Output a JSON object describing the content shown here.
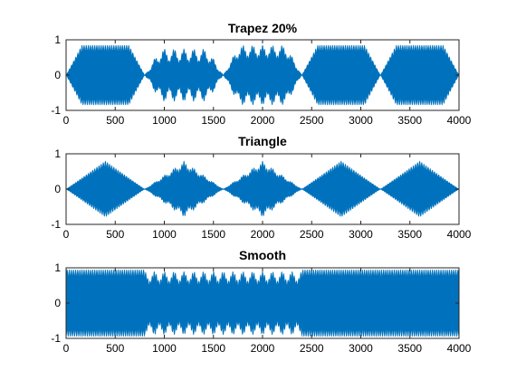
{
  "figure": {
    "background": "#ffffff",
    "series_color": "#0072BD"
  },
  "chart_data": [
    {
      "type": "line",
      "title": "Trapez 20%",
      "envelope": "trapez",
      "xlim": [
        0,
        4000
      ],
      "ylim": [
        -1,
        1
      ],
      "xticks": [
        0,
        500,
        1000,
        1500,
        2000,
        2500,
        3000,
        3500,
        4000
      ],
      "yticks": [
        -1,
        0,
        1
      ],
      "xlabel": "",
      "ylabel": "",
      "segments": [
        {
          "x_start": 0,
          "x_end": 800,
          "amplitude": 0.85,
          "ramp": 0.2
        },
        {
          "x_start": 800,
          "x_end": 1600,
          "amplitude": 0.75,
          "ramp": 0.2,
          "ripple": 0.45
        },
        {
          "x_start": 1600,
          "x_end": 2400,
          "amplitude": 0.85,
          "ramp": 0.2,
          "ripple": 0.35
        },
        {
          "x_start": 2400,
          "x_end": 3200,
          "amplitude": 0.85,
          "ramp": 0.2
        },
        {
          "x_start": 3200,
          "x_end": 4000,
          "amplitude": 0.85,
          "ramp": 0.2
        }
      ]
    },
    {
      "type": "line",
      "title": "Triangle",
      "envelope": "triangle",
      "xlim": [
        0,
        4000
      ],
      "ylim": [
        -1,
        1
      ],
      "xticks": [
        0,
        500,
        1000,
        1500,
        2000,
        2500,
        3000,
        3500,
        4000
      ],
      "yticks": [
        -1,
        0,
        1
      ],
      "xlabel": "",
      "ylabel": "",
      "segments": [
        {
          "x_start": 0,
          "x_end": 800,
          "amplitude": 0.8
        },
        {
          "x_start": 800,
          "x_end": 1600,
          "amplitude": 0.8,
          "ripple": 0.2
        },
        {
          "x_start": 1600,
          "x_end": 2400,
          "amplitude": 0.8,
          "ripple": 0.2
        },
        {
          "x_start": 2400,
          "x_end": 3200,
          "amplitude": 0.8
        },
        {
          "x_start": 3200,
          "x_end": 4000,
          "amplitude": 0.8
        }
      ]
    },
    {
      "type": "line",
      "title": "Smooth",
      "envelope": "smooth",
      "xlim": [
        0,
        4000
      ],
      "ylim": [
        -1,
        1
      ],
      "xticks": [
        0,
        500,
        1000,
        1500,
        2000,
        2500,
        3000,
        3500,
        4000
      ],
      "yticks": [
        -1,
        0,
        1
      ],
      "xlabel": "",
      "ylabel": "",
      "segments": [
        {
          "x_start": 0,
          "x_end": 800,
          "amplitude": 0.95
        },
        {
          "x_start": 800,
          "x_end": 1600,
          "amplitude": 0.9,
          "ripple": 0.3
        },
        {
          "x_start": 1600,
          "x_end": 2400,
          "amplitude": 0.9,
          "ripple": 0.3
        },
        {
          "x_start": 2400,
          "x_end": 3200,
          "amplitude": 0.95
        },
        {
          "x_start": 3200,
          "x_end": 4000,
          "amplitude": 0.95
        }
      ]
    }
  ]
}
